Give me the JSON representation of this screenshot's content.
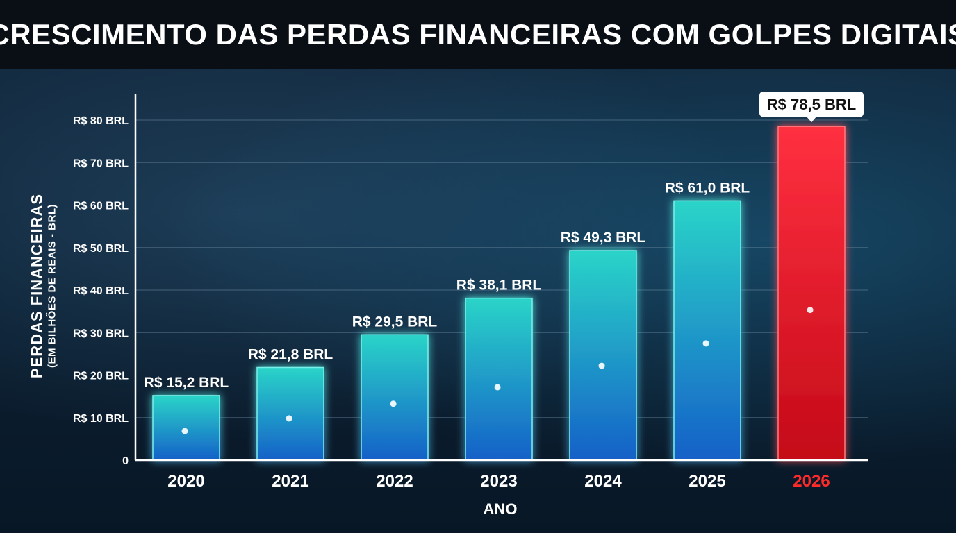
{
  "title": "CRESCIMENTO DAS PERDAS FINANCEIRAS COM GOLPES DIGITAIS",
  "chart_data": {
    "type": "bar",
    "categories": [
      "2020",
      "2021",
      "2022",
      "2023",
      "2024",
      "2025",
      "2026"
    ],
    "values": [
      15.2,
      21.8,
      29.5,
      38.1,
      49.3,
      61.0,
      78.5
    ],
    "data_labels": [
      "R$ 15,2 BRL",
      "R$ 21,8 BRL",
      "R$ 29,5 BRL",
      "R$ 38,1 BRL",
      "R$ 49,3 BRL",
      "R$ 61,0 BRL",
      "R$ 78,5 BRL"
    ],
    "highlight_index": 6,
    "xlabel": "ANO",
    "ylabel": "PERDAS FINANCEIRAS",
    "ylabel_sub": "(EM BILHÕES DE REAIS - BRL)",
    "ylim": [
      0,
      80
    ],
    "yticks": [
      0,
      10,
      20,
      30,
      40,
      50,
      60,
      70,
      80
    ],
    "ytick_labels": [
      "0",
      "R$ 10 BRL",
      "R$ 20 BRL",
      "R$ 30 BRL",
      "R$ 40 BRL",
      "R$ 50 BRL",
      "R$ 60 BRL",
      "R$ 70 BRL",
      "R$ 80 BRL"
    ],
    "grid": true,
    "colors": {
      "bar_top": "#2ad4c8",
      "bar_bottom": "#1560c8",
      "highlight": "#e8121f",
      "highlight_text": "#ff2a2a",
      "axis": "#ffffff",
      "grid": "#6d8aa3"
    }
  }
}
